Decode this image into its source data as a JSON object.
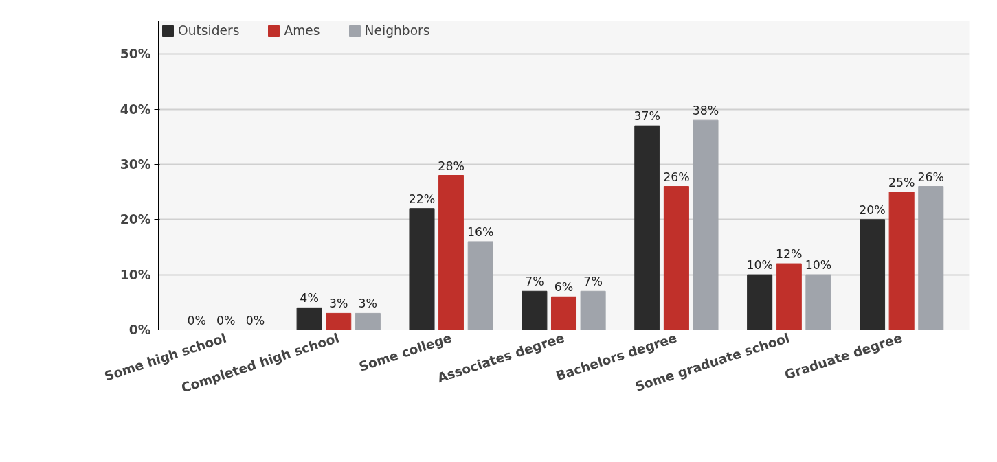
{
  "chart_data": {
    "type": "bar",
    "categories": [
      "Some high school",
      "Completed high school",
      "Some college",
      "Associates degree",
      "Bachelors degree",
      "Some graduate school",
      "Graduate degree"
    ],
    "series": [
      {
        "name": "Outsiders",
        "color": "#2b2b2b",
        "values": [
          0,
          4,
          22,
          7,
          37,
          10,
          20
        ],
        "value_labels": [
          "0%",
          "4%",
          "22%",
          "7%",
          "37%",
          "10%",
          "20%"
        ]
      },
      {
        "name": "Ames",
        "color": "#c0302a",
        "values": [
          0,
          3,
          28,
          6,
          26,
          12,
          25
        ],
        "value_labels": [
          "0%",
          "3%",
          "28%",
          "6%",
          "26%",
          "12%",
          "25%"
        ]
      },
      {
        "name": "Neighbors",
        "color": "#a0a4ab",
        "values": [
          0,
          3,
          16,
          7,
          38,
          10,
          26
        ],
        "value_labels": [
          "0%",
          "3%",
          "16%",
          "7%",
          "38%",
          "10%",
          "26%"
        ]
      }
    ],
    "ylim": [
      0,
      56
    ],
    "yticks": [
      {
        "value": 0,
        "label": "0%"
      },
      {
        "value": 10,
        "label": "10%"
      },
      {
        "value": 20,
        "label": "20%"
      },
      {
        "value": 30,
        "label": "30%"
      },
      {
        "value": 40,
        "label": "40%"
      },
      {
        "value": 50,
        "label": "50%"
      }
    ],
    "grid": "y",
    "legend": "top left"
  }
}
